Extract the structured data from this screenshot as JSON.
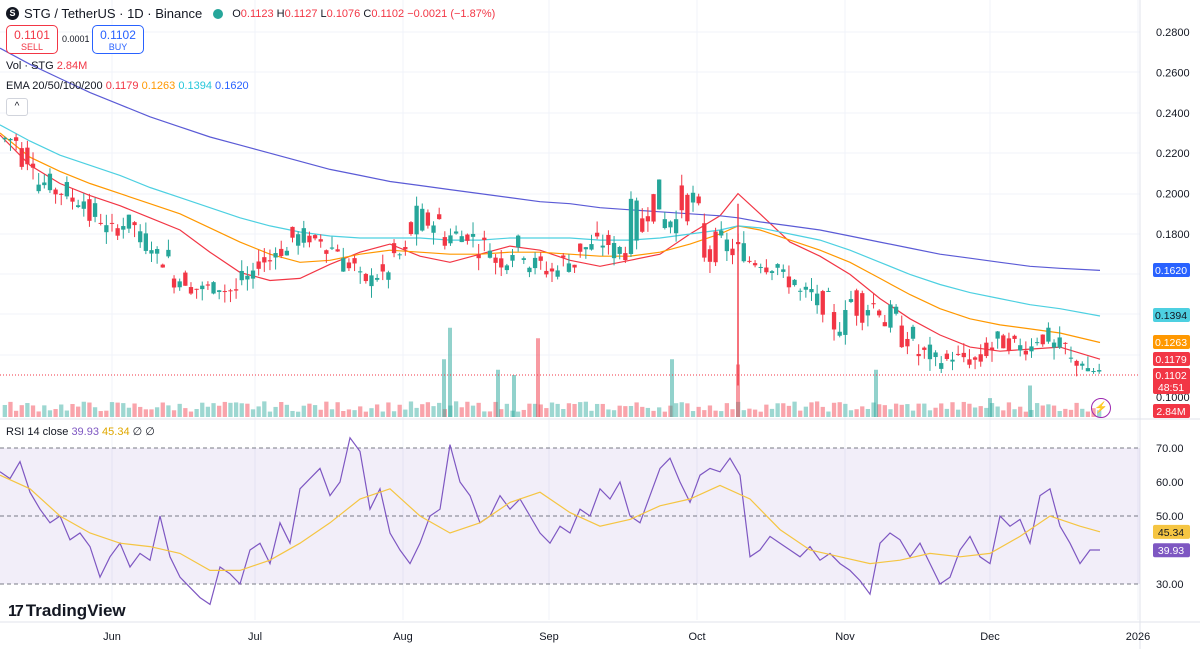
{
  "header": {
    "symbol": "STG / TetherUS · 1D · Binance",
    "open_label": "O",
    "open": "0.1123",
    "high_label": "H",
    "high": "0.1127",
    "low_label": "L",
    "low": "0.1076",
    "close_label": "C",
    "close": "0.1102",
    "change": "−0.0021 (−1.87%)"
  },
  "trade": {
    "sell_price": "0.1101",
    "sell_label": "SELL",
    "spread": "0.0001",
    "buy_price": "0.1102",
    "buy_label": "BUY"
  },
  "volume_legend": {
    "label": "Vol · STG",
    "value": "2.84M"
  },
  "ema_legend": {
    "label": "EMA 20/50/100/200",
    "v20": "0.1179",
    "v50": "0.1263",
    "v100": "0.1394",
    "v200": "0.1620"
  },
  "rsi_legend": {
    "label": "RSI 14 close",
    "rsi": "39.93",
    "ma": "45.34",
    "x1": "∅",
    "x2": "∅"
  },
  "branding": {
    "name": "TradingView"
  },
  "colors": {
    "up": "#26a69a",
    "down": "#f23645",
    "ema20": "#f23645",
    "ema50": "#ff9800",
    "ema100": "#4dd0e1",
    "ema200": "#5b5bd6",
    "rsi": "#7e57c2",
    "rsi_ma": "#f5c542"
  },
  "chart_data": [
    {
      "type": "candlestick",
      "title": "STG / TetherUS · 1D · Binance",
      "x_ticks": [
        "Jun",
        "Jul",
        "Aug",
        "Sep",
        "Oct",
        "Nov",
        "Dec",
        "2026"
      ],
      "y_ticks": [
        "0.2800",
        "0.2600",
        "0.2400",
        "0.2200",
        "0.2000",
        "0.1800",
        "0.1000"
      ],
      "ylim": [
        0.1,
        0.285
      ],
      "price_tags": [
        {
          "label": "0.1620",
          "value": 0.162,
          "color": "#2962ff"
        },
        {
          "label": "0.1394",
          "value": 0.1394,
          "color": "#4dd0e1"
        },
        {
          "label": "0.1263",
          "value": 0.1263,
          "color": "#ff9800"
        },
        {
          "label": "0.1179",
          "value": 0.1179,
          "color": "#f23645"
        },
        {
          "label": "0.1102",
          "value": 0.1102,
          "color": "#f23645",
          "sub": "48:51"
        },
        {
          "label": "2.84M",
          "value": null,
          "color": "#f23645"
        }
      ],
      "segments": [
        [
          0.222,
          0.232
        ],
        [
          0.212,
          0.228
        ],
        [
          0.2,
          0.21
        ],
        [
          0.196,
          0.207
        ],
        [
          0.192,
          0.202
        ],
        [
          0.181,
          0.198
        ],
        [
          0.179,
          0.186
        ],
        [
          0.18,
          0.19
        ],
        [
          0.17,
          0.183
        ],
        [
          0.163,
          0.174
        ],
        [
          0.153,
          0.163
        ],
        [
          0.15,
          0.156
        ],
        [
          0.15,
          0.157
        ],
        [
          0.15,
          0.154
        ],
        [
          0.153,
          0.162
        ],
        [
          0.162,
          0.172
        ],
        [
          0.168,
          0.175
        ],
        [
          0.172,
          0.184
        ],
        [
          0.175,
          0.18
        ],
        [
          0.17,
          0.176
        ],
        [
          0.16,
          0.171
        ],
        [
          0.153,
          0.162
        ],
        [
          0.154,
          0.166
        ],
        [
          0.162,
          0.176
        ],
        [
          0.17,
          0.196
        ],
        [
          0.18,
          0.192
        ],
        [
          0.172,
          0.186
        ],
        [
          0.176,
          0.182
        ],
        [
          0.168,
          0.18
        ],
        [
          0.162,
          0.172
        ],
        [
          0.166,
          0.18
        ],
        [
          0.16,
          0.17
        ],
        [
          0.158,
          0.166
        ],
        [
          0.16,
          0.172
        ],
        [
          0.168,
          0.178
        ],
        [
          0.17,
          0.181
        ],
        [
          0.166,
          0.178
        ],
        [
          0.17,
          0.198
        ],
        [
          0.186,
          0.207
        ],
        [
          0.18,
          0.193
        ],
        [
          0.186,
          0.205
        ],
        [
          0.155,
          0.2
        ],
        [
          0.166,
          0.182
        ],
        [
          0.166,
          0.178
        ],
        [
          0.162,
          0.172
        ],
        [
          0.16,
          0.17
        ],
        [
          0.152,
          0.163
        ],
        [
          0.146,
          0.155
        ],
        [
          0.14,
          0.152
        ],
        [
          0.128,
          0.145
        ],
        [
          0.136,
          0.158
        ],
        [
          0.138,
          0.152
        ],
        [
          0.13,
          0.146
        ],
        [
          0.123,
          0.135
        ],
        [
          0.115,
          0.126
        ],
        [
          0.113,
          0.122
        ],
        [
          0.116,
          0.122
        ],
        [
          0.114,
          0.121
        ],
        [
          0.115,
          0.133
        ],
        [
          0.122,
          0.13
        ],
        [
          0.12,
          0.128
        ],
        [
          0.124,
          0.134
        ],
        [
          0.119,
          0.129
        ],
        [
          0.113,
          0.121
        ],
        [
          0.11,
          0.114
        ]
      ],
      "ema": {
        "x": [
          0,
          30,
          60,
          90,
          120,
          150,
          180,
          210,
          240,
          270,
          300,
          330,
          360,
          390,
          420,
          450,
          480,
          510,
          540,
          570,
          600,
          630,
          660,
          690,
          720,
          738,
          760,
          790,
          820,
          850,
          880,
          910,
          940,
          970,
          1000,
          1030,
          1060,
          1100
        ],
        "ema20": [
          0.229,
          0.214,
          0.205,
          0.199,
          0.194,
          0.188,
          0.182,
          0.171,
          0.161,
          0.157,
          0.158,
          0.165,
          0.171,
          0.175,
          0.169,
          0.166,
          0.17,
          0.174,
          0.172,
          0.167,
          0.164,
          0.167,
          0.17,
          0.18,
          0.189,
          0.2,
          0.19,
          0.176,
          0.169,
          0.16,
          0.148,
          0.138,
          0.13,
          0.124,
          0.122,
          0.123,
          0.124,
          0.118
        ],
        "ema50": [
          0.23,
          0.218,
          0.211,
          0.205,
          0.2,
          0.195,
          0.19,
          0.183,
          0.176,
          0.17,
          0.166,
          0.167,
          0.17,
          0.172,
          0.171,
          0.17,
          0.17,
          0.171,
          0.171,
          0.17,
          0.169,
          0.169,
          0.171,
          0.175,
          0.18,
          0.184,
          0.182,
          0.177,
          0.172,
          0.166,
          0.158,
          0.15,
          0.143,
          0.138,
          0.135,
          0.133,
          0.131,
          0.1263
        ],
        "ema100": [
          0.234,
          0.226,
          0.219,
          0.214,
          0.209,
          0.203,
          0.198,
          0.193,
          0.188,
          0.184,
          0.181,
          0.179,
          0.178,
          0.178,
          0.178,
          0.177,
          0.177,
          0.178,
          0.178,
          0.178,
          0.177,
          0.177,
          0.178,
          0.18,
          0.182,
          0.184,
          0.183,
          0.18,
          0.177,
          0.172,
          0.166,
          0.16,
          0.155,
          0.151,
          0.148,
          0.145,
          0.143,
          0.1394
        ],
        "ema200": [
          0.272,
          0.264,
          0.257,
          0.25,
          0.244,
          0.238,
          0.233,
          0.228,
          0.224,
          0.22,
          0.216,
          0.212,
          0.209,
          0.206,
          0.204,
          0.202,
          0.2,
          0.198,
          0.196,
          0.195,
          0.193,
          0.192,
          0.191,
          0.19,
          0.189,
          0.188,
          0.186,
          0.184,
          0.182,
          0.179,
          0.176,
          0.173,
          0.17,
          0.168,
          0.166,
          0.164,
          0.163,
          0.162
        ]
      },
      "volume": {
        "spikes": [
          [
            450,
            0.85
          ],
          [
            444,
            0.55
          ],
          [
            498,
            0.45
          ],
          [
            514,
            0.4
          ],
          [
            538,
            0.75
          ],
          [
            672,
            0.55
          ],
          [
            738,
            0.5
          ],
          [
            876,
            0.45
          ],
          [
            990,
            0.18
          ],
          [
            1030,
            0.3
          ]
        ]
      }
    },
    {
      "type": "line",
      "title": "RSI 14 close",
      "ylim": [
        20,
        80
      ],
      "y_ticks": [
        "70.00",
        "60.00",
        "50.00",
        "30.00"
      ],
      "bands": [
        70,
        50,
        30
      ],
      "series": [
        {
          "name": "RSI",
          "x": [
            0,
            10,
            20,
            30,
            40,
            50,
            60,
            70,
            80,
            90,
            100,
            110,
            120,
            130,
            140,
            150,
            160,
            170,
            180,
            190,
            200,
            210,
            220,
            230,
            240,
            250,
            260,
            270,
            280,
            290,
            300,
            310,
            320,
            330,
            340,
            350,
            360,
            370,
            380,
            390,
            400,
            410,
            420,
            430,
            440,
            450,
            460,
            470,
            480,
            490,
            500,
            510,
            520,
            530,
            540,
            550,
            560,
            570,
            580,
            590,
            600,
            610,
            620,
            630,
            640,
            650,
            660,
            670,
            680,
            690,
            700,
            710,
            720,
            730,
            740,
            750,
            760,
            770,
            780,
            790,
            800,
            810,
            820,
            830,
            840,
            850,
            860,
            870,
            880,
            890,
            900,
            910,
            920,
            930,
            940,
            950,
            960,
            970,
            980,
            990,
            1000,
            1010,
            1020,
            1030,
            1040,
            1050,
            1060,
            1070,
            1080,
            1090,
            1100
          ],
          "values": [
            63,
            61,
            66,
            57,
            52,
            48,
            50,
            43,
            45,
            41,
            32,
            38,
            42,
            35,
            39,
            37,
            50,
            38,
            32,
            29,
            26,
            24,
            35,
            33,
            30,
            40,
            42,
            36,
            48,
            42,
            58,
            61,
            64,
            56,
            60,
            73,
            69,
            52,
            58,
            45,
            40,
            36,
            42,
            50,
            52,
            71,
            60,
            56,
            48,
            50,
            56,
            52,
            55,
            50,
            45,
            42,
            47,
            45,
            52,
            50,
            58,
            55,
            60,
            50,
            48,
            56,
            64,
            67,
            60,
            54,
            62,
            64,
            63,
            67,
            62,
            38,
            40,
            44,
            42,
            40,
            38,
            41,
            37,
            39,
            36,
            34,
            31,
            27,
            42,
            45,
            43,
            38,
            42,
            36,
            30,
            32,
            40,
            44,
            38,
            36,
            50,
            47,
            49,
            42,
            56,
            58,
            47,
            42,
            36,
            40,
            40
          ]
        },
        {
          "name": "RSI MA",
          "x": [
            0,
            30,
            60,
            90,
            120,
            150,
            180,
            210,
            240,
            270,
            300,
            330,
            360,
            390,
            420,
            450,
            480,
            510,
            540,
            570,
            600,
            630,
            660,
            690,
            720,
            750,
            780,
            810,
            840,
            870,
            900,
            930,
            960,
            990,
            1020,
            1050,
            1080,
            1100
          ],
          "values": [
            62,
            58,
            50,
            45,
            42,
            41,
            39,
            34,
            34,
            37,
            42,
            48,
            55,
            58,
            50,
            45,
            48,
            54,
            57,
            51,
            47,
            49,
            53,
            55,
            59,
            55,
            46,
            40,
            38,
            36,
            37,
            39,
            38,
            39,
            44,
            50,
            47,
            45.34
          ]
        }
      ]
    }
  ]
}
